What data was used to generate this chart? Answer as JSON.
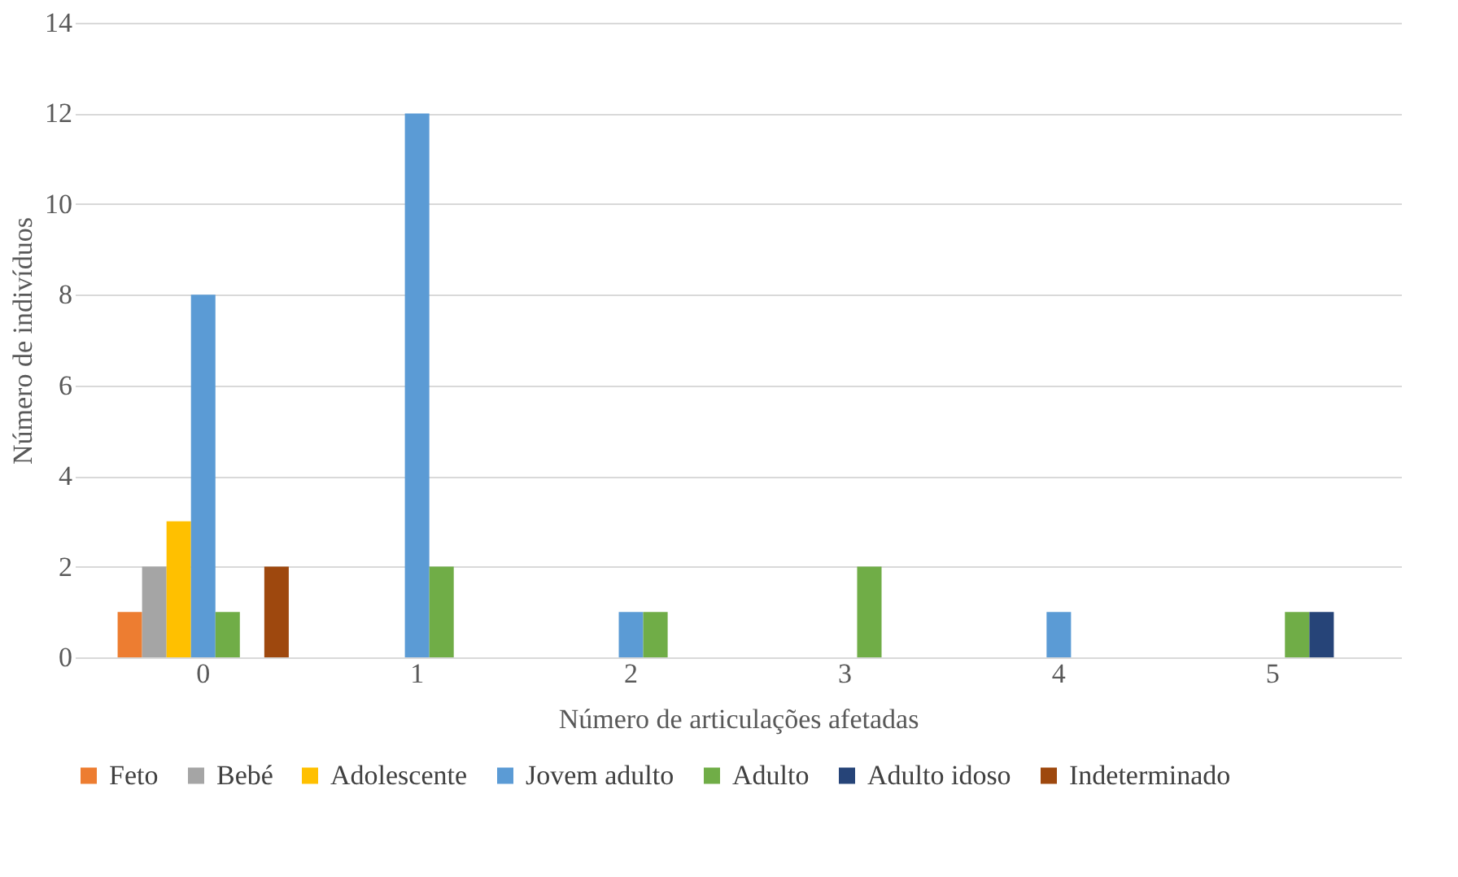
{
  "chart_data": {
    "type": "bar",
    "xlabel": "Número de articulações afetadas",
    "ylabel": "Número de indivíduos",
    "categories": [
      "0",
      "1",
      "2",
      "3",
      "4",
      "5"
    ],
    "series": [
      {
        "name": "Feto",
        "color": "#ed7d31",
        "values": [
          1,
          0,
          0,
          0,
          0,
          0
        ]
      },
      {
        "name": "Bebé",
        "color": "#a5a5a5",
        "values": [
          2,
          0,
          0,
          0,
          0,
          0
        ]
      },
      {
        "name": "Adolescente",
        "color": "#ffc000",
        "values": [
          3,
          0,
          0,
          0,
          0,
          0
        ]
      },
      {
        "name": "Jovem adulto",
        "color": "#5b9bd5",
        "values": [
          8,
          12,
          1,
          0,
          1,
          0
        ]
      },
      {
        "name": "Adulto",
        "color": "#70ad47",
        "values": [
          1,
          2,
          1,
          2,
          0,
          1
        ]
      },
      {
        "name": "Adulto idoso",
        "color": "#264478",
        "values": [
          0,
          0,
          0,
          0,
          0,
          1
        ]
      },
      {
        "name": "Indeterminado",
        "color": "#9e480e",
        "values": [
          2,
          0,
          0,
          0,
          0,
          0
        ]
      }
    ],
    "ylim": [
      0,
      14
    ],
    "yticks": [
      0,
      2,
      4,
      6,
      8,
      10,
      12,
      14
    ],
    "grid": "y",
    "legend": "bottom"
  }
}
